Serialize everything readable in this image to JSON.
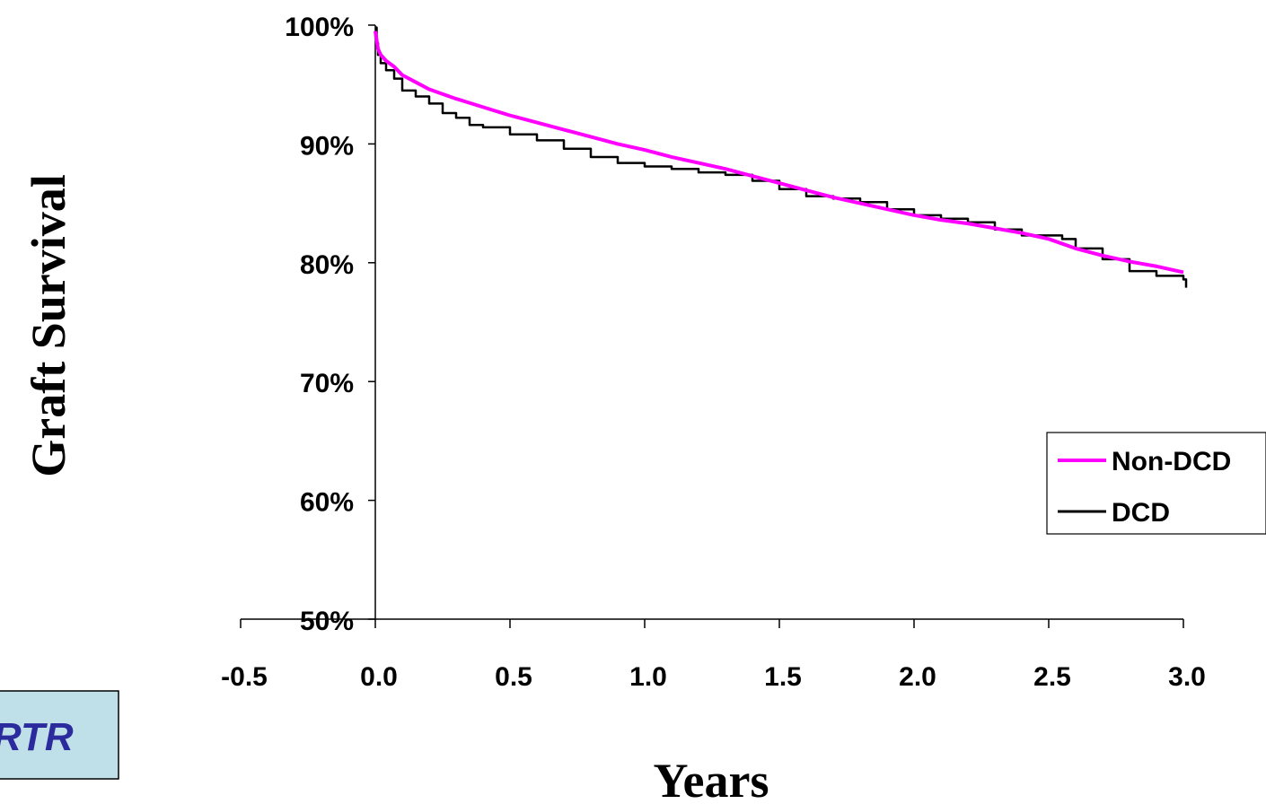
{
  "logo": {
    "text": "RTR",
    "bg": "#bfe0e8",
    "text_color": "#2b2b9e"
  },
  "chart_data": {
    "type": "line",
    "title": "",
    "xlabel": "Years",
    "ylabel": "Graft Survival",
    "xlim": [
      -0.5,
      3.0
    ],
    "ylim": [
      0.5,
      1.0
    ],
    "x_ticks": [
      -0.5,
      0.0,
      0.5,
      1.0,
      1.5,
      2.0,
      2.5,
      3.0
    ],
    "x_tick_labels": [
      "-0.5",
      "0.0",
      "0.5",
      "1.0",
      "1.5",
      "2.0",
      "2.5",
      "3.0"
    ],
    "y_ticks": [
      0.5,
      0.6,
      0.7,
      0.8,
      0.9,
      1.0
    ],
    "y_tick_labels": [
      "50%",
      "60%",
      "70%",
      "80%",
      "90%",
      "100%"
    ],
    "grid": false,
    "legend_position": "right",
    "series": [
      {
        "name": "Non-DCD",
        "color": "#ff00ff",
        "x": [
          0.0,
          0.01,
          0.02,
          0.04,
          0.07,
          0.1,
          0.15,
          0.2,
          0.3,
          0.4,
          0.5,
          0.6,
          0.7,
          0.8,
          0.9,
          1.0,
          1.1,
          1.2,
          1.3,
          1.4,
          1.5,
          1.6,
          1.7,
          1.8,
          1.9,
          2.0,
          2.1,
          2.2,
          2.3,
          2.4,
          2.5,
          2.6,
          2.7,
          2.8,
          2.9,
          3.0
        ],
        "y": [
          0.995,
          0.98,
          0.975,
          0.97,
          0.965,
          0.958,
          0.952,
          0.946,
          0.938,
          0.931,
          0.924,
          0.918,
          0.912,
          0.906,
          0.9,
          0.895,
          0.889,
          0.884,
          0.879,
          0.873,
          0.867,
          0.861,
          0.855,
          0.85,
          0.845,
          0.84,
          0.836,
          0.833,
          0.829,
          0.825,
          0.82,
          0.812,
          0.806,
          0.801,
          0.797,
          0.792
        ]
      },
      {
        "name": "DCD",
        "color": "#000000",
        "x": [
          0.0,
          0.005,
          0.01,
          0.02,
          0.04,
          0.07,
          0.1,
          0.15,
          0.2,
          0.25,
          0.3,
          0.35,
          0.4,
          0.5,
          0.6,
          0.7,
          0.8,
          0.9,
          1.0,
          1.1,
          1.2,
          1.3,
          1.4,
          1.5,
          1.6,
          1.7,
          1.8,
          1.9,
          2.0,
          2.1,
          2.2,
          2.3,
          2.4,
          2.5,
          2.55,
          2.6,
          2.7,
          2.8,
          2.9,
          3.0,
          3.01
        ],
        "y": [
          0.998,
          0.985,
          0.975,
          0.968,
          0.962,
          0.955,
          0.945,
          0.94,
          0.934,
          0.926,
          0.922,
          0.916,
          0.914,
          0.908,
          0.903,
          0.896,
          0.889,
          0.884,
          0.881,
          0.879,
          0.876,
          0.874,
          0.869,
          0.862,
          0.856,
          0.854,
          0.851,
          0.845,
          0.84,
          0.837,
          0.834,
          0.828,
          0.823,
          0.823,
          0.82,
          0.812,
          0.803,
          0.793,
          0.789,
          0.786,
          0.779
        ]
      }
    ]
  }
}
